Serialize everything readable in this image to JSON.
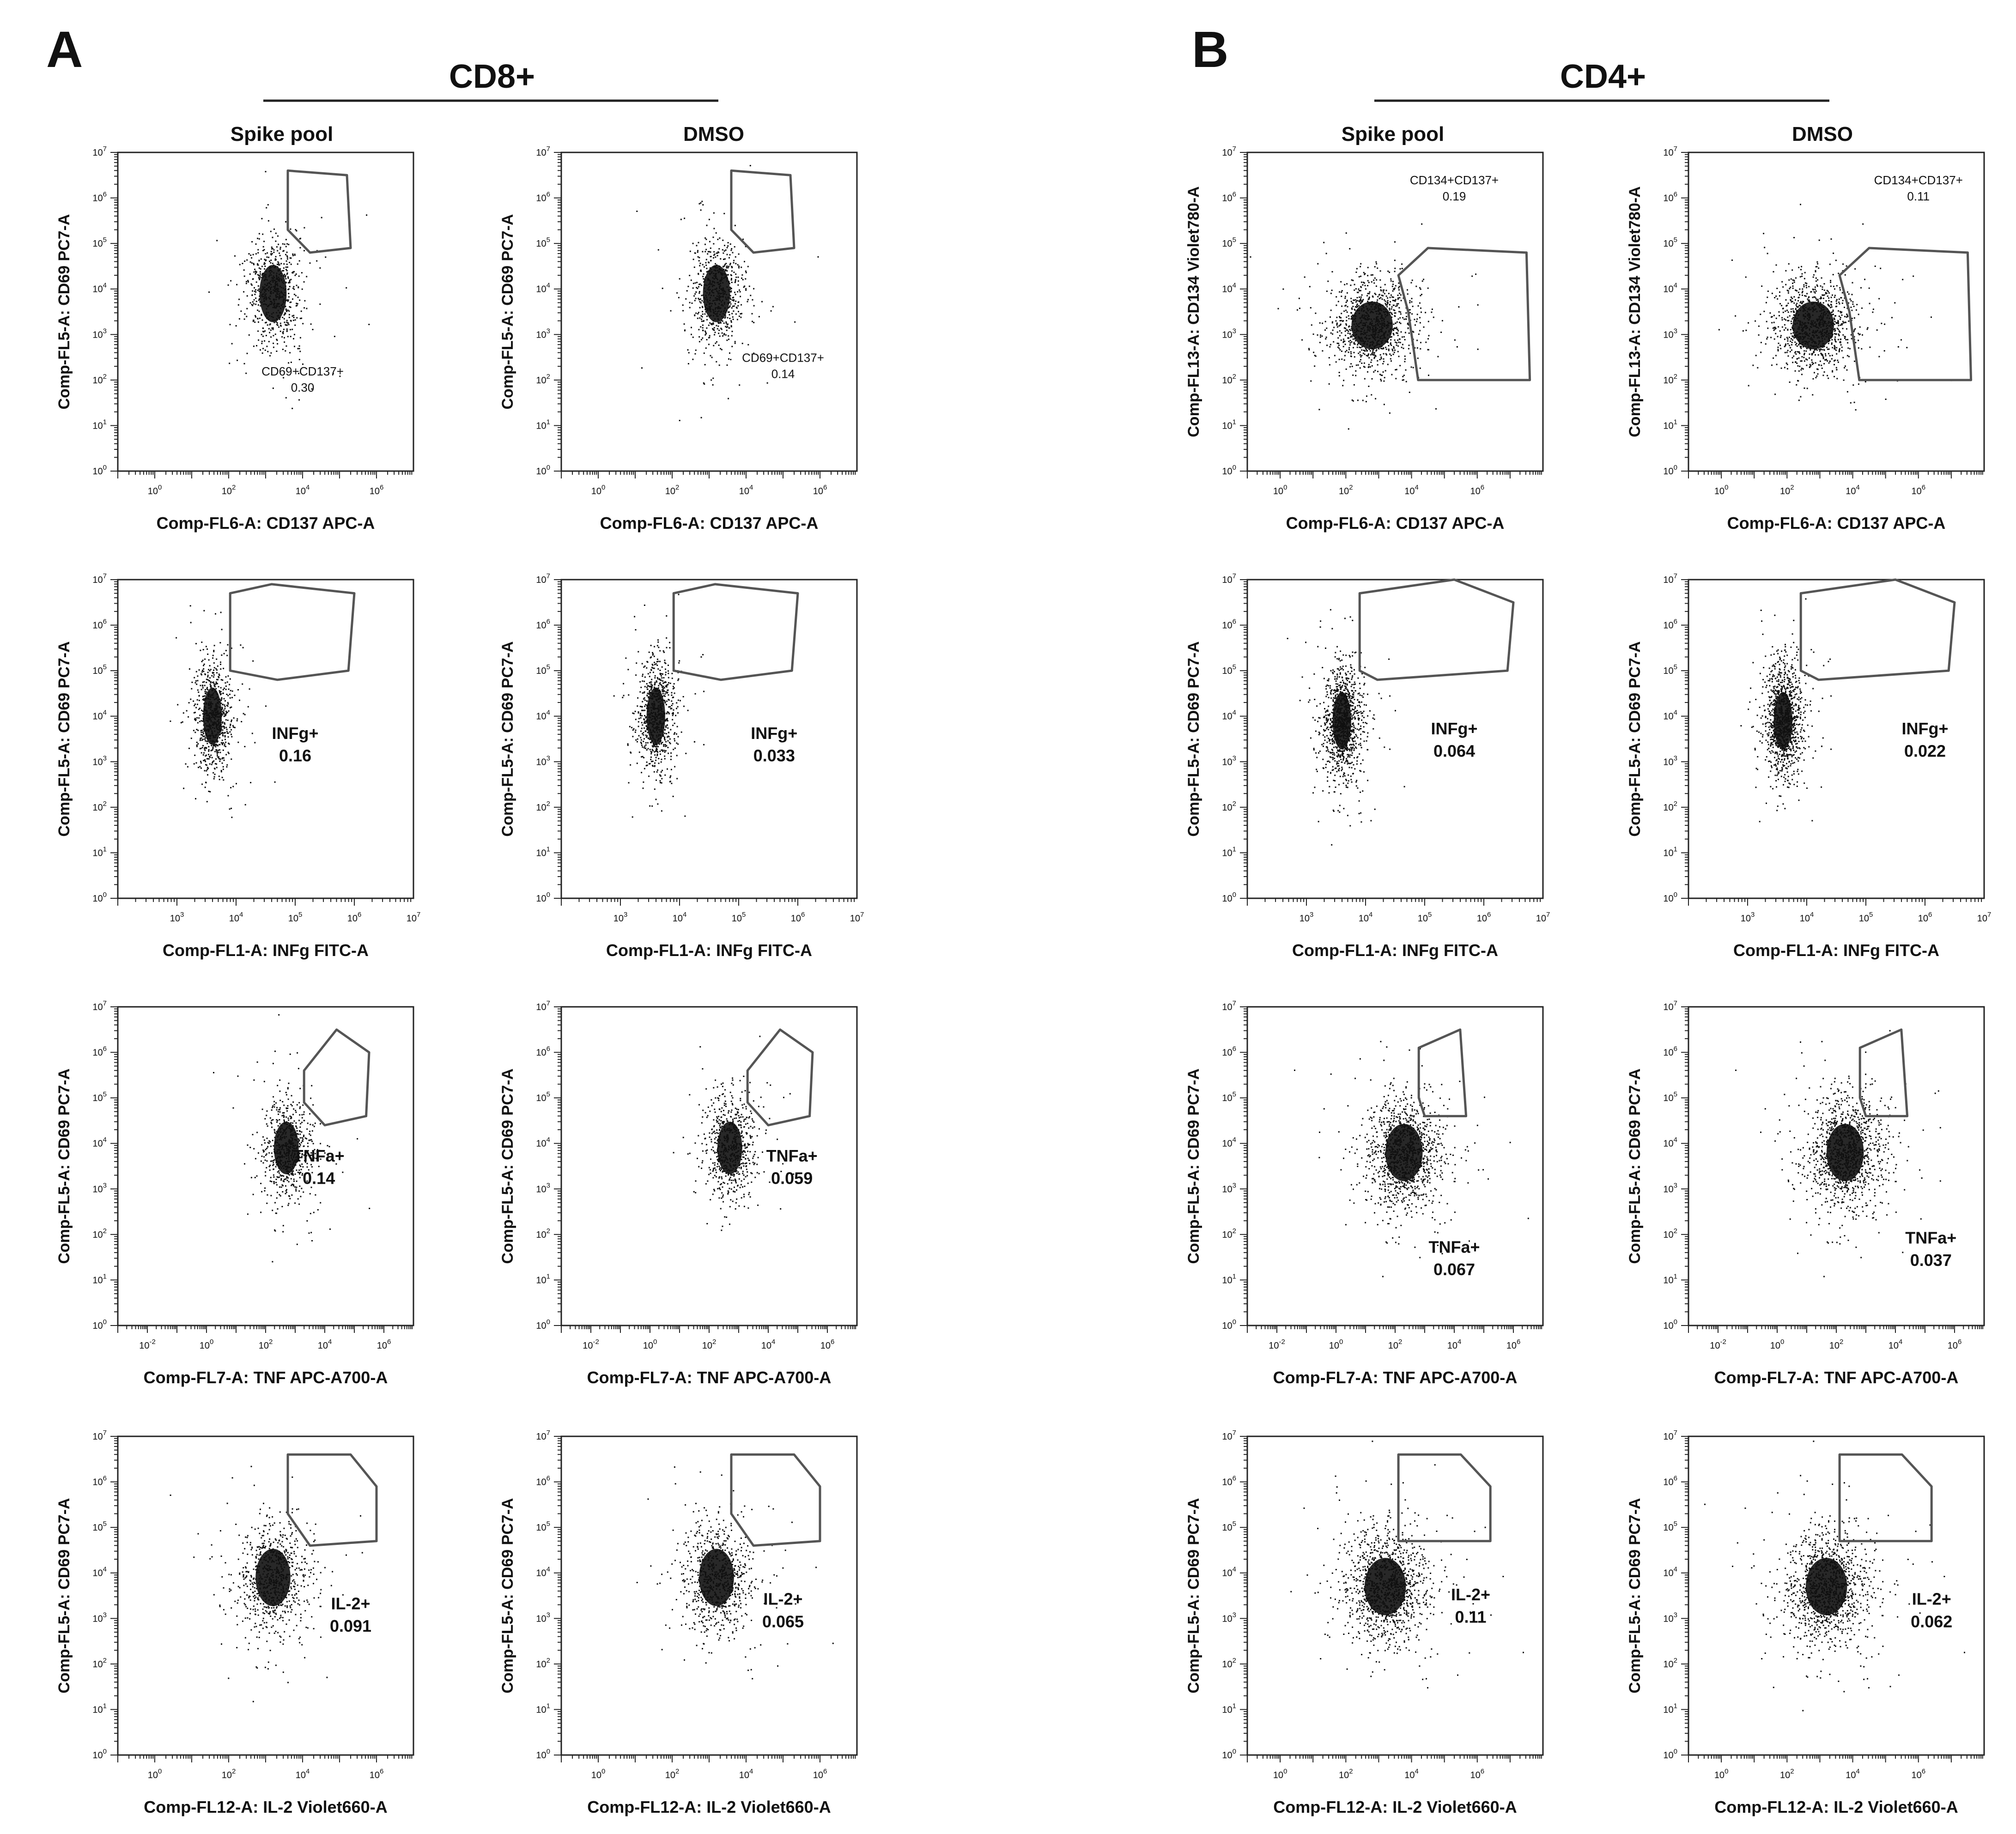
{
  "figure": {
    "panels": [
      {
        "letter": "A",
        "group": "CD8+",
        "columns": [
          "Spike pool",
          "DMSO"
        ]
      },
      {
        "letter": "B",
        "group": "CD4+",
        "columns": [
          "Spike pool",
          "DMSO"
        ]
      }
    ]
  },
  "colors": {
    "dot": "#111111",
    "gate": "#555555",
    "axis": "#222222"
  },
  "chart_data": [
    {
      "type": "scatter",
      "panel": "A",
      "group": "CD8+",
      "condition": "Spike pool",
      "row": 1,
      "xlabel": "Comp-FL6-A: CD137 APC-A",
      "ylabel": "Comp-FL5-A: CD69 PC7-A",
      "xlim": [
        -1,
        7
      ],
      "ylim": [
        0,
        7
      ],
      "xticks": [
        0,
        2,
        4,
        6
      ],
      "yticks": [
        0,
        1,
        2,
        3,
        4,
        5,
        6,
        7
      ],
      "gate_label": "CD69+CD137+",
      "gate_value": "0.30",
      "label_pos": "below-gate",
      "label_x": 4.0,
      "label_y": 2.1,
      "gate_poly": [
        [
          3.6,
          6.6
        ],
        [
          5.2,
          6.5
        ],
        [
          5.3,
          4.9
        ],
        [
          4.2,
          4.8
        ],
        [
          3.6,
          5.3
        ]
      ],
      "cloud": {
        "cx": 3.2,
        "cy": 3.9,
        "sx": 0.35,
        "sy": 0.6,
        "n": 700
      }
    },
    {
      "type": "scatter",
      "panel": "A",
      "group": "CD8+",
      "condition": "DMSO",
      "row": 1,
      "xlabel": "Comp-FL6-A: CD137 APC-A",
      "ylabel": "Comp-FL5-A: CD69 PC7-A",
      "xlim": [
        -1,
        7
      ],
      "ylim": [
        0,
        7
      ],
      "xticks": [
        0,
        2,
        4,
        6
      ],
      "yticks": [
        0,
        1,
        2,
        3,
        4,
        5,
        6,
        7
      ],
      "gate_label": "CD69+CD137+",
      "gate_value": "0.14",
      "label_pos": "below-gate",
      "label_x": 5.0,
      "label_y": 2.4,
      "gate_poly": [
        [
          3.6,
          6.6
        ],
        [
          5.2,
          6.5
        ],
        [
          5.3,
          4.9
        ],
        [
          4.2,
          4.8
        ],
        [
          3.6,
          5.3
        ]
      ],
      "cloud": {
        "cx": 3.2,
        "cy": 3.9,
        "sx": 0.35,
        "sy": 0.6,
        "n": 700
      }
    },
    {
      "type": "scatter",
      "panel": "A",
      "group": "CD8+",
      "condition": "Spike pool",
      "row": 2,
      "xlabel": "Comp-FL1-A: INFg FITC-A",
      "ylabel": "Comp-FL5-A: CD69 PC7-A",
      "xlim": [
        2,
        7
      ],
      "ylim": [
        0,
        7
      ],
      "xticks": [
        3,
        4,
        5,
        6,
        7
      ],
      "yticks": [
        0,
        1,
        2,
        3,
        4,
        5,
        6,
        7
      ],
      "gate_label": "INFg+",
      "gate_value": "0.16",
      "label_pos": "below-gate",
      "label_x": 5.0,
      "label_y": 3.5,
      "gate_poly": [
        [
          3.9,
          6.7
        ],
        [
          4.6,
          6.9
        ],
        [
          6.0,
          6.7
        ],
        [
          5.9,
          5.0
        ],
        [
          4.7,
          4.8
        ],
        [
          3.9,
          5.0
        ]
      ],
      "cloud": {
        "cx": 3.6,
        "cy": 4.0,
        "sx": 0.15,
        "sy": 0.6,
        "n": 800
      }
    },
    {
      "type": "scatter",
      "panel": "A",
      "group": "CD8+",
      "condition": "DMSO",
      "row": 2,
      "xlabel": "Comp-FL1-A: INFg FITC-A",
      "ylabel": "Comp-FL5-A: CD69 PC7-A",
      "xlim": [
        2,
        7
      ],
      "ylim": [
        0,
        7
      ],
      "xticks": [
        3,
        4,
        5,
        6,
        7
      ],
      "yticks": [
        0,
        1,
        2,
        3,
        4,
        5,
        6,
        7
      ],
      "gate_label": "INFg+",
      "gate_value": "0.033",
      "label_pos": "below-gate",
      "label_x": 5.6,
      "label_y": 3.5,
      "gate_poly": [
        [
          3.9,
          6.7
        ],
        [
          4.6,
          6.9
        ],
        [
          6.0,
          6.7
        ],
        [
          5.9,
          5.0
        ],
        [
          4.7,
          4.8
        ],
        [
          3.9,
          5.0
        ]
      ],
      "cloud": {
        "cx": 3.6,
        "cy": 4.0,
        "sx": 0.15,
        "sy": 0.6,
        "n": 800
      }
    },
    {
      "type": "scatter",
      "panel": "A",
      "group": "CD8+",
      "condition": "Spike pool",
      "row": 3,
      "xlabel": "Comp-FL7-A: TNF APC-A700-A",
      "ylabel": "Comp-FL5-A: CD69 PC7-A",
      "xlim": [
        -3,
        7
      ],
      "ylim": [
        0,
        7
      ],
      "xticks": [
        -2,
        0,
        2,
        4,
        6
      ],
      "yticks": [
        0,
        1,
        2,
        3,
        4,
        5,
        6,
        7
      ],
      "gate_label": "TNFa+",
      "gate_value": "0.14",
      "label_pos": "below-gate",
      "label_x": 3.8,
      "label_y": 3.6,
      "gate_poly": [
        [
          3.3,
          5.6
        ],
        [
          4.4,
          6.5
        ],
        [
          5.5,
          6.0
        ],
        [
          5.4,
          4.6
        ],
        [
          4.0,
          4.4
        ],
        [
          3.3,
          4.9
        ]
      ],
      "cloud": {
        "cx": 2.7,
        "cy": 3.9,
        "sx": 0.4,
        "sy": 0.55,
        "n": 700
      }
    },
    {
      "type": "scatter",
      "panel": "A",
      "group": "CD8+",
      "condition": "DMSO",
      "row": 3,
      "xlabel": "Comp-FL7-A: TNF APC-A700-A",
      "ylabel": "Comp-FL5-A: CD69 PC7-A",
      "xlim": [
        -3,
        7
      ],
      "ylim": [
        0,
        7
      ],
      "xticks": [
        -2,
        0,
        2,
        4,
        6
      ],
      "yticks": [
        0,
        1,
        2,
        3,
        4,
        5,
        6,
        7
      ],
      "gate_label": "TNFa+",
      "gate_value": "0.059",
      "label_pos": "below-gate",
      "label_x": 4.8,
      "label_y": 3.6,
      "gate_poly": [
        [
          3.3,
          5.6
        ],
        [
          4.4,
          6.5
        ],
        [
          5.5,
          6.0
        ],
        [
          5.4,
          4.6
        ],
        [
          4.0,
          4.4
        ],
        [
          3.3,
          4.9
        ]
      ],
      "cloud": {
        "cx": 2.7,
        "cy": 3.9,
        "sx": 0.4,
        "sy": 0.55,
        "n": 700
      }
    },
    {
      "type": "scatter",
      "panel": "A",
      "group": "CD8+",
      "condition": "Spike pool",
      "row": 4,
      "xlabel": "Comp-FL12-A: IL-2 Violet660-A",
      "ylabel": "Comp-FL5-A: CD69 PC7-A",
      "xlim": [
        -1,
        7
      ],
      "ylim": [
        0,
        7
      ],
      "xticks": [
        0,
        2,
        4,
        6
      ],
      "yticks": [
        0,
        1,
        2,
        3,
        4,
        5,
        6,
        7
      ],
      "gate_label": "IL-2+",
      "gate_value": "0.091",
      "label_pos": "below-gate",
      "label_x": 5.3,
      "label_y": 3.2,
      "gate_poly": [
        [
          3.6,
          6.6
        ],
        [
          5.3,
          6.6
        ],
        [
          6.0,
          5.9
        ],
        [
          6.0,
          4.7
        ],
        [
          4.2,
          4.6
        ],
        [
          3.6,
          5.3
        ]
      ],
      "cloud": {
        "cx": 3.2,
        "cy": 3.9,
        "sx": 0.45,
        "sy": 0.6,
        "n": 800
      }
    },
    {
      "type": "scatter",
      "panel": "A",
      "group": "CD8+",
      "condition": "DMSO",
      "row": 4,
      "xlabel": "Comp-FL12-A: IL-2 Violet660-A",
      "ylabel": "Comp-FL5-A: CD69 PC7-A",
      "xlim": [
        -1,
        7
      ],
      "ylim": [
        0,
        7
      ],
      "xticks": [
        0,
        2,
        4,
        6
      ],
      "yticks": [
        0,
        1,
        2,
        3,
        4,
        5,
        6,
        7
      ],
      "gate_label": "IL-2+",
      "gate_value": "0.065",
      "label_pos": "below-gate",
      "label_x": 5.0,
      "label_y": 3.3,
      "gate_poly": [
        [
          3.6,
          6.6
        ],
        [
          5.3,
          6.6
        ],
        [
          6.0,
          5.9
        ],
        [
          6.0,
          4.7
        ],
        [
          4.2,
          4.6
        ],
        [
          3.6,
          5.3
        ]
      ],
      "cloud": {
        "cx": 3.2,
        "cy": 3.9,
        "sx": 0.45,
        "sy": 0.6,
        "n": 800
      }
    },
    {
      "type": "scatter",
      "panel": "B",
      "group": "CD4+",
      "condition": "Spike pool",
      "row": 1,
      "xlabel": "Comp-FL6-A: CD137 APC-A",
      "ylabel": "Comp-FL13-A: CD134 Violet780-A",
      "xlim": [
        -1,
        8
      ],
      "ylim": [
        0,
        7
      ],
      "xticks": [
        0,
        2,
        4,
        6
      ],
      "yticks": [
        0,
        1,
        2,
        3,
        4,
        5,
        6,
        7
      ],
      "gate_label": "CD134+CD137+",
      "gate_value": "0.19",
      "label_pos": "above-gate",
      "label_x": 5.3,
      "label_y": 6.3,
      "gate_poly": [
        [
          3.6,
          4.3
        ],
        [
          4.5,
          4.9
        ],
        [
          7.5,
          4.8
        ],
        [
          7.6,
          2.0
        ],
        [
          4.2,
          2.0
        ],
        [
          3.9,
          3.5
        ]
      ],
      "cloud": {
        "cx": 2.8,
        "cy": 3.2,
        "sx": 0.6,
        "sy": 0.5,
        "n": 1100
      }
    },
    {
      "type": "scatter",
      "panel": "B",
      "group": "CD4+",
      "condition": "DMSO",
      "row": 1,
      "xlabel": "Comp-FL6-A: CD137 APC-A",
      "ylabel": "Comp-FL13-A: CD134 Violet780-A",
      "xlim": [
        -1,
        8
      ],
      "ylim": [
        0,
        7
      ],
      "xticks": [
        0,
        2,
        4,
        6
      ],
      "yticks": [
        0,
        1,
        2,
        3,
        4,
        5,
        6,
        7
      ],
      "gate_label": "CD134+CD137+",
      "gate_value": "0.11",
      "label_pos": "above-gate",
      "label_x": 6.0,
      "label_y": 6.3,
      "gate_poly": [
        [
          3.6,
          4.3
        ],
        [
          4.5,
          4.9
        ],
        [
          7.5,
          4.8
        ],
        [
          7.6,
          2.0
        ],
        [
          4.2,
          2.0
        ],
        [
          3.9,
          3.5
        ]
      ],
      "cloud": {
        "cx": 2.8,
        "cy": 3.2,
        "sx": 0.6,
        "sy": 0.5,
        "n": 1100
      }
    },
    {
      "type": "scatter",
      "panel": "B",
      "group": "CD4+",
      "condition": "Spike pool",
      "row": 2,
      "xlabel": "Comp-FL1-A: INFg FITC-A",
      "ylabel": "Comp-FL5-A: CD69 PC7-A",
      "xlim": [
        2,
        7
      ],
      "ylim": [
        0,
        7
      ],
      "xticks": [
        3,
        4,
        5,
        6,
        7
      ],
      "yticks": [
        0,
        1,
        2,
        3,
        4,
        5,
        6,
        7
      ],
      "gate_label": "INFg+",
      "gate_value": "0.064",
      "label_pos": "below-gate",
      "label_x": 5.5,
      "label_y": 3.6,
      "gate_poly": [
        [
          3.9,
          6.7
        ],
        [
          5.5,
          7.0
        ],
        [
          6.5,
          6.5
        ],
        [
          6.4,
          5.0
        ],
        [
          4.2,
          4.8
        ],
        [
          3.9,
          5.0
        ]
      ],
      "cloud": {
        "cx": 3.6,
        "cy": 3.9,
        "sx": 0.15,
        "sy": 0.6,
        "n": 1100
      }
    },
    {
      "type": "scatter",
      "panel": "B",
      "group": "CD4+",
      "condition": "DMSO",
      "row": 2,
      "xlabel": "Comp-FL1-A: INFg FITC-A",
      "ylabel": "Comp-FL5-A: CD69 PC7-A",
      "xlim": [
        2,
        7
      ],
      "ylim": [
        0,
        7
      ],
      "xticks": [
        3,
        4,
        5,
        6,
        7
      ],
      "yticks": [
        0,
        1,
        2,
        3,
        4,
        5,
        6,
        7
      ],
      "gate_label": "INFg+",
      "gate_value": "0.022",
      "label_pos": "below-gate",
      "label_x": 6.0,
      "label_y": 3.6,
      "gate_poly": [
        [
          3.9,
          6.7
        ],
        [
          5.5,
          7.0
        ],
        [
          6.5,
          6.5
        ],
        [
          6.4,
          5.0
        ],
        [
          4.2,
          4.8
        ],
        [
          3.9,
          5.0
        ]
      ],
      "cloud": {
        "cx": 3.6,
        "cy": 3.9,
        "sx": 0.15,
        "sy": 0.6,
        "n": 1100
      }
    },
    {
      "type": "scatter",
      "panel": "B",
      "group": "CD4+",
      "condition": "Spike pool",
      "row": 3,
      "xlabel": "Comp-FL7-A: TNF APC-A700-A",
      "ylabel": "Comp-FL5-A: CD69 PC7-A",
      "xlim": [
        -3,
        7
      ],
      "ylim": [
        0,
        7
      ],
      "xticks": [
        -2,
        0,
        2,
        4,
        6
      ],
      "yticks": [
        0,
        1,
        2,
        3,
        4,
        5,
        6,
        7
      ],
      "gate_label": "TNFa+",
      "gate_value": "0.067",
      "label_pos": "below-gate",
      "label_x": 4.0,
      "label_y": 1.6,
      "gate_poly": [
        [
          2.8,
          6.1
        ],
        [
          4.2,
          6.5
        ],
        [
          4.4,
          4.6
        ],
        [
          3.0,
          4.6
        ],
        [
          2.8,
          5.0
        ]
      ],
      "cloud": {
        "cx": 2.3,
        "cy": 3.8,
        "sx": 0.6,
        "sy": 0.6,
        "n": 1200
      }
    },
    {
      "type": "scatter",
      "panel": "B",
      "group": "CD4+",
      "condition": "DMSO",
      "row": 3,
      "xlabel": "Comp-FL7-A: TNF APC-A700-A",
      "ylabel": "Comp-FL5-A: CD69 PC7-A",
      "xlim": [
        -3,
        7
      ],
      "ylim": [
        0,
        7
      ],
      "xticks": [
        -2,
        0,
        2,
        4,
        6
      ],
      "yticks": [
        0,
        1,
        2,
        3,
        4,
        5,
        6,
        7
      ],
      "gate_label": "TNFa+",
      "gate_value": "0.037",
      "label_pos": "below-gate",
      "label_x": 5.2,
      "label_y": 1.8,
      "gate_poly": [
        [
          2.8,
          6.1
        ],
        [
          4.2,
          6.5
        ],
        [
          4.4,
          4.6
        ],
        [
          3.0,
          4.6
        ],
        [
          2.8,
          5.0
        ]
      ],
      "cloud": {
        "cx": 2.3,
        "cy": 3.8,
        "sx": 0.6,
        "sy": 0.6,
        "n": 1200
      }
    },
    {
      "type": "scatter",
      "panel": "B",
      "group": "CD4+",
      "condition": "Spike pool",
      "row": 4,
      "xlabel": "Comp-FL12-A: IL-2 Violet660-A",
      "ylabel": "Comp-FL5-A: CD69 PC7-A",
      "xlim": [
        -1,
        8
      ],
      "ylim": [
        0,
        7
      ],
      "xticks": [
        0,
        2,
        4,
        6
      ],
      "yticks": [
        0,
        1,
        2,
        3,
        4,
        5,
        6,
        7
      ],
      "gate_label": "IL-2+",
      "gate_value": "0.11",
      "label_pos": "below-gate",
      "label_x": 5.8,
      "label_y": 3.4,
      "gate_poly": [
        [
          3.6,
          6.6
        ],
        [
          5.5,
          6.6
        ],
        [
          6.4,
          5.9
        ],
        [
          6.4,
          4.7
        ],
        [
          3.6,
          4.7
        ]
      ],
      "cloud": {
        "cx": 3.2,
        "cy": 3.7,
        "sx": 0.6,
        "sy": 0.6,
        "n": 1200
      }
    },
    {
      "type": "scatter",
      "panel": "B",
      "group": "CD4+",
      "condition": "DMSO",
      "row": 4,
      "xlabel": "Comp-FL12-A: IL-2 Violet660-A",
      "ylabel": "Comp-FL5-A: CD69 PC7-A",
      "xlim": [
        -1,
        8
      ],
      "ylim": [
        0,
        7
      ],
      "xticks": [
        0,
        2,
        4,
        6
      ],
      "yticks": [
        0,
        1,
        2,
        3,
        4,
        5,
        6,
        7
      ],
      "gate_label": "IL-2+",
      "gate_value": "0.062",
      "label_pos": "below-gate",
      "label_x": 6.4,
      "label_y": 3.3,
      "gate_poly": [
        [
          3.6,
          6.6
        ],
        [
          5.5,
          6.6
        ],
        [
          6.4,
          5.9
        ],
        [
          6.4,
          4.7
        ],
        [
          3.6,
          4.7
        ]
      ],
      "cloud": {
        "cx": 3.2,
        "cy": 3.7,
        "sx": 0.6,
        "sy": 0.6,
        "n": 1200
      }
    }
  ]
}
